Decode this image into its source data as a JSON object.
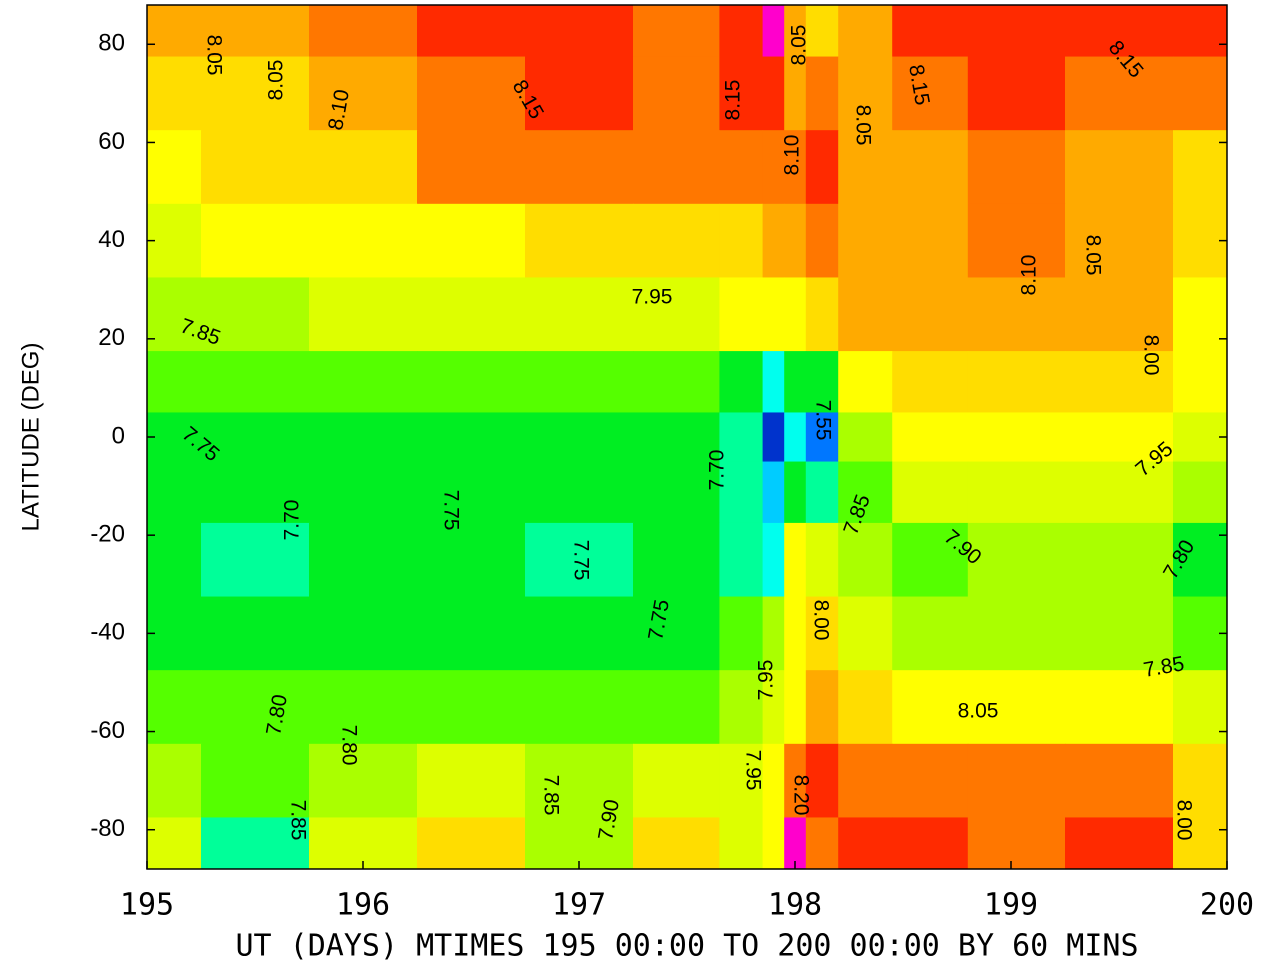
{
  "chart_data": {
    "type": "contour",
    "y_label": "LATITUDE (DEG)",
    "x_label": "UT (DAYS) MTIMES 195 00:00 TO 200 00:00 BY   60 MINS",
    "xlim": [
      195,
      200
    ],
    "xticks": [
      195,
      196,
      197,
      198,
      199,
      200
    ],
    "ylim": [
      -88,
      88
    ],
    "yticks": [
      -80,
      -60,
      -40,
      -20,
      0,
      20,
      40,
      60,
      80
    ],
    "x": [
      195,
      195.5,
      196,
      196.5,
      197,
      197.5,
      197.8,
      197.9,
      198,
      198.1,
      198.3,
      198.6,
      199,
      199.5,
      200
    ],
    "y": [
      85,
      70,
      55,
      40,
      25,
      10,
      0,
      -10,
      -25,
      -40,
      -55,
      -70,
      -85
    ],
    "z": [
      [
        8.05,
        8.08,
        8.12,
        8.15,
        8.15,
        8.14,
        8.17,
        8.22,
        8.05,
        8.0,
        8.08,
        8.16,
        8.16,
        8.15,
        8.17
      ],
      [
        8.02,
        8.04,
        8.08,
        8.14,
        8.15,
        8.12,
        8.15,
        8.17,
        8.08,
        8.12,
        8.07,
        8.12,
        8.16,
        8.13,
        8.12
      ],
      [
        7.98,
        8.02,
        8.04,
        8.12,
        8.12,
        8.11,
        8.12,
        8.13,
        8.1,
        8.16,
        8.08,
        8.05,
        8.12,
        8.07,
        8.04
      ],
      [
        7.94,
        7.96,
        7.97,
        7.99,
        8.0,
        8.0,
        8.03,
        8.06,
        8.08,
        8.13,
        8.07,
        8.05,
        8.11,
        8.05,
        8.02
      ],
      [
        7.86,
        7.88,
        7.9,
        7.9,
        7.92,
        7.94,
        7.95,
        7.97,
        7.95,
        8.03,
        8.05,
        8.05,
        8.08,
        8.05,
        7.99
      ],
      [
        7.8,
        7.8,
        7.82,
        7.81,
        7.82,
        7.83,
        7.78,
        7.65,
        7.75,
        7.78,
        7.95,
        8.0,
        8.02,
        8.0,
        7.97
      ],
      [
        7.77,
        7.76,
        7.78,
        7.77,
        7.78,
        7.78,
        7.7,
        7.52,
        7.68,
        7.57,
        7.85,
        7.95,
        7.97,
        7.98,
        7.94
      ],
      [
        7.76,
        7.75,
        7.76,
        7.76,
        7.77,
        7.76,
        7.7,
        7.6,
        7.75,
        7.7,
        7.83,
        7.9,
        7.92,
        7.92,
        7.88
      ],
      [
        7.76,
        7.72,
        7.75,
        7.76,
        7.74,
        7.76,
        7.72,
        7.68,
        7.95,
        7.9,
        7.86,
        7.84,
        7.86,
        7.86,
        7.79
      ],
      [
        7.77,
        7.77,
        7.77,
        7.78,
        7.77,
        7.78,
        7.8,
        7.85,
        7.98,
        8.0,
        7.9,
        7.88,
        7.88,
        7.88,
        7.82
      ],
      [
        7.82,
        7.8,
        7.8,
        7.84,
        7.83,
        7.82,
        7.85,
        7.93,
        7.95,
        8.05,
        8.02,
        7.98,
        7.97,
        7.95,
        7.92
      ],
      [
        7.88,
        7.82,
        7.86,
        7.92,
        7.86,
        7.92,
        7.9,
        7.95,
        8.1,
        8.15,
        8.12,
        8.12,
        8.14,
        8.12,
        8.02
      ],
      [
        7.9,
        7.72,
        7.9,
        8.03,
        7.88,
        8.0,
        7.92,
        7.98,
        8.2,
        8.12,
        8.16,
        8.16,
        8.14,
        8.15,
        8.04
      ]
    ],
    "levels": [
      7.5,
      {
        "value": 7.55,
        "label": "7.55"
      },
      7.6,
      7.65,
      {
        "value": 7.7,
        "label": "7.70"
      },
      {
        "value": 7.75,
        "label": "7.75"
      },
      {
        "value": 7.8,
        "label": "7.80"
      },
      {
        "value": 7.85,
        "label": "7.85"
      },
      {
        "value": 7.9,
        "label": "7.90"
      },
      {
        "value": 7.95,
        "label": "7.95"
      },
      {
        "value": 8,
        "label": "8.00"
      },
      {
        "value": 8.05,
        "label": "8.05"
      },
      {
        "value": 8.1,
        "label": "8.10"
      },
      {
        "value": 8.15,
        "label": "8.15"
      },
      {
        "value": 8.2,
        "label": "8.20"
      }
    ],
    "level_colors": [
      "#0033cc",
      "#0077ff",
      "#00ccff",
      "#00ffee",
      "#00ff99",
      "#00ee22",
      "#55ff00",
      "#aaff00",
      "#ddff00",
      "#ffff00",
      "#ffdd00",
      "#ffaa00",
      "#ff7700",
      "#ff2a00",
      "#ff00cc"
    ]
  }
}
